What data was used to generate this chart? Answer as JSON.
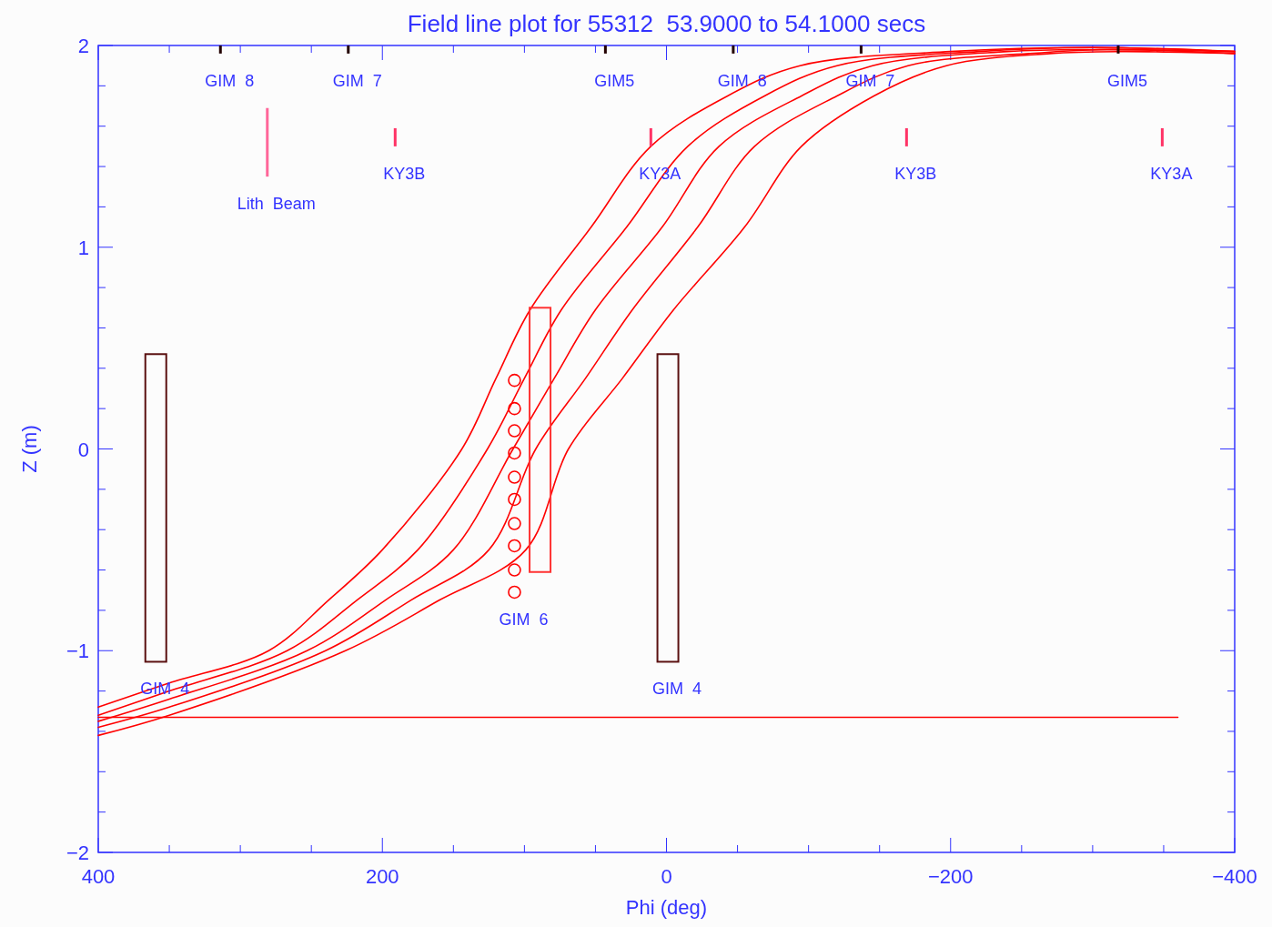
{
  "chart_data": {
    "type": "line",
    "title": "Field line plot for 55312  53.9000 to 54.1000 secs",
    "xlabel": "Phi (deg)",
    "ylabel": "Z (m)",
    "xlim": [
      400,
      -400
    ],
    "xticks": [
      400,
      {
        "value": 350,
        "label": null
      },
      {
        "value": 300,
        "label": null
      },
      {
        "value": 250,
        "label": null
      },
      200,
      {
        "value": 150,
        "label": null
      },
      {
        "value": 100,
        "label": null
      },
      {
        "value": 50,
        "label": null
      },
      0,
      {
        "value": -50,
        "label": null
      },
      {
        "value": -100,
        "label": null
      },
      {
        "value": -150,
        "label": null
      },
      {
        "value": -200,
        "label": "−200"
      },
      {
        "value": -250,
        "label": null
      },
      {
        "value": -300,
        "label": null
      },
      {
        "value": -350,
        "label": null
      },
      {
        "value": -400,
        "label": "−400"
      }
    ],
    "ylim": [
      -2,
      2
    ],
    "yticks": [
      {
        "value": -2,
        "label": "−2"
      },
      {
        "value": -1.8,
        "label": null
      },
      {
        "value": -1.6,
        "label": null
      },
      {
        "value": -1.4,
        "label": null
      },
      {
        "value": -1.2,
        "label": null
      },
      {
        "value": -1,
        "label": "−1"
      },
      {
        "value": -0.8,
        "label": null
      },
      {
        "value": -0.6,
        "label": null
      },
      {
        "value": -0.4,
        "label": null
      },
      {
        "value": -0.2,
        "label": null
      },
      0,
      {
        "value": 0.2,
        "label": null
      },
      {
        "value": 0.4,
        "label": null
      },
      {
        "value": 0.6,
        "label": null
      },
      {
        "value": 0.8,
        "label": null
      },
      1,
      {
        "value": 1.2,
        "label": null
      },
      {
        "value": 1.4,
        "label": null
      },
      {
        "value": 1.6,
        "label": null
      },
      {
        "value": 1.8,
        "label": null
      },
      2
    ],
    "grid": false,
    "series": [
      {
        "color": "#ff0000",
        "x": [
          400,
          350,
          280,
          238,
          200,
          144,
          120,
          96,
          53,
          11,
          -43,
          -94,
          -200,
          -300,
          -400
        ],
        "values": [
          -1.28,
          -1.16,
          -1.0,
          -0.75,
          -0.5,
          0,
          0.35,
          0.69,
          1.1,
          1.5,
          1.75,
          1.9,
          1.97,
          1.99,
          1.97
        ]
      },
      {
        "color": "#ff0000",
        "x": [
          400,
          350,
          267,
          218,
          175,
          126,
          100,
          74,
          28,
          -15,
          -69,
          -120,
          -220,
          -300,
          -400
        ],
        "values": [
          -1.32,
          -1.2,
          -1.0,
          -0.75,
          -0.5,
          0,
          0.35,
          0.69,
          1.1,
          1.5,
          1.75,
          1.9,
          1.97,
          1.99,
          1.97
        ]
      },
      {
        "color": "#ff0000",
        "x": [
          400,
          350,
          253,
          198,
          150,
          108,
          79,
          50,
          3,
          -37,
          -95,
          -145,
          -240,
          -300,
          -400
        ],
        "values": [
          -1.35,
          -1.24,
          -1.0,
          -0.75,
          -0.5,
          0,
          0.35,
          0.69,
          1.1,
          1.5,
          1.75,
          1.9,
          1.97,
          1.98,
          1.97
        ]
      },
      {
        "color": "#ff0000",
        "x": [
          400,
          350,
          240,
          180,
          125,
          92,
          57,
          24,
          -22,
          -62,
          -120,
          -170,
          -255,
          -310,
          -400
        ],
        "values": [
          -1.38,
          -1.28,
          -1.0,
          -0.75,
          -0.5,
          0,
          0.35,
          0.69,
          1.1,
          1.5,
          1.75,
          1.9,
          1.96,
          1.98,
          1.96
        ]
      },
      {
        "color": "#ff0000",
        "x": [
          400,
          350,
          226,
          160,
          99,
          69,
          31,
          -5,
          -55,
          -95,
          -146,
          -197,
          -270,
          -320,
          -400
        ],
        "values": [
          -1.42,
          -1.32,
          -1.0,
          -0.75,
          -0.5,
          0,
          0.35,
          0.69,
          1.1,
          1.5,
          1.75,
          1.9,
          1.96,
          1.97,
          1.96
        ]
      },
      {
        "color": "#ff0000",
        "x": [
          400,
          -360
        ],
        "values": [
          -1.33,
          -1.33
        ]
      },
      {
        "type": "bar",
        "color": "#5a1010",
        "x": [
          359.5
        ],
        "base": [
          -1.055
        ],
        "values": [
          1.525
        ]
      },
      {
        "type": "bar",
        "color": "#5a1010",
        "x": [
          -1
        ],
        "base": [
          -1.055
        ],
        "values": [
          1.525
        ]
      },
      {
        "type": "bar",
        "color": "#ff3333",
        "x": [
          89
        ],
        "base": [
          -0.61
        ],
        "values": [
          1.31
        ]
      },
      {
        "type": "scatter",
        "color": "#ff0000",
        "marker": "circle",
        "x": [
          107,
          107,
          107,
          107,
          107,
          107,
          107,
          107,
          107,
          107
        ],
        "values": [
          0.34,
          0.2,
          0.09,
          -0.02,
          -0.14,
          -0.25,
          -0.37,
          -0.48,
          -0.6,
          -0.71
        ]
      },
      {
        "type": "bar",
        "color": "#220000",
        "x": [
          314,
          224,
          43,
          -47,
          -137,
          -318
        ],
        "base": [
          1.96,
          1.96,
          1.96,
          1.96,
          1.96,
          1.96
        ],
        "values": [
          0.04,
          0.04,
          0.04,
          0.04,
          0.04,
          0.04
        ]
      },
      {
        "type": "bar",
        "color": "#ff6699",
        "x": [
          281
        ],
        "base": [
          1.35
        ],
        "values": [
          0.34
        ]
      },
      {
        "type": "bar",
        "color": "#ff3366",
        "x": [
          191,
          11,
          -169,
          -349
        ],
        "base": [
          1.5,
          1.5,
          1.5,
          1.5
        ],
        "values": [
          0.09,
          0.09,
          0.09,
          0.09
        ]
      }
    ],
    "annotations": [
      {
        "text": "GIM  8",
        "x": 314,
        "y": 1.96
      },
      {
        "text": "GIM  7",
        "x": 224,
        "y": 1.96
      },
      {
        "text": "GIM5",
        "x": 43,
        "y": 1.96
      },
      {
        "text": "GIM  8",
        "x": -47,
        "y": 1.96
      },
      {
        "text": "GIM  7",
        "x": -137,
        "y": 1.96
      },
      {
        "text": "GIM5",
        "x": -318,
        "y": 1.96
      },
      {
        "text": "Lith  Beam",
        "x": 281,
        "y": 1.35
      },
      {
        "text": "KY3B",
        "x": 191,
        "y": 1.5
      },
      {
        "text": "KY3A",
        "x": 11,
        "y": 1.5
      },
      {
        "text": "KY3B",
        "x": -169,
        "y": 1.5
      },
      {
        "text": "KY3A",
        "x": -349,
        "y": 1.5
      },
      {
        "text": "GIM  4",
        "x": 359.5,
        "y": -1.055
      },
      {
        "text": "GIM  4",
        "x": -1,
        "y": -1.055
      },
      {
        "text": "GIM  6",
        "x": 107,
        "y": -0.71
      }
    ]
  }
}
